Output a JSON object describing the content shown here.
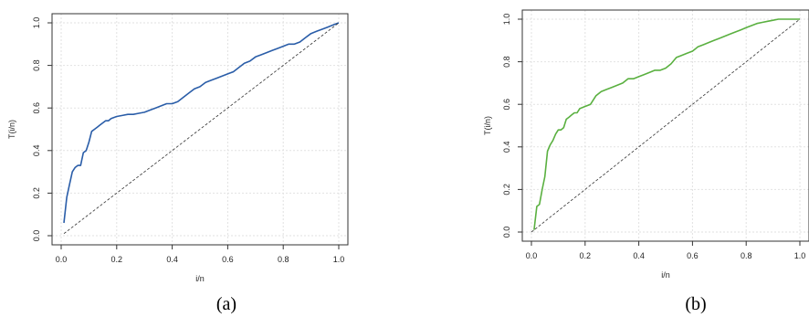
{
  "chart_data": [
    {
      "type": "line",
      "caption": "(a)",
      "xlabel": "i/n",
      "ylabel": "T(i/n)",
      "xlim": [
        0,
        1
      ],
      "ylim": [
        0,
        1
      ],
      "xticks": [
        "0.0",
        "0.2",
        "0.4",
        "0.6",
        "0.8",
        "1.0"
      ],
      "yticks": [
        "0.0",
        "0.2",
        "0.4",
        "0.6",
        "0.8",
        "1.0"
      ],
      "grid": true,
      "series": [
        {
          "color": "#2a5da8",
          "x": [
            0.01,
            0.02,
            0.03,
            0.04,
            0.05,
            0.06,
            0.07,
            0.08,
            0.09,
            0.1,
            0.11,
            0.12,
            0.13,
            0.14,
            0.15,
            0.16,
            0.17,
            0.18,
            0.2,
            0.22,
            0.24,
            0.26,
            0.28,
            0.3,
            0.32,
            0.34,
            0.36,
            0.38,
            0.4,
            0.42,
            0.44,
            0.46,
            0.48,
            0.5,
            0.52,
            0.54,
            0.56,
            0.58,
            0.6,
            0.62,
            0.64,
            0.66,
            0.68,
            0.7,
            0.72,
            0.74,
            0.76,
            0.78,
            0.8,
            0.82,
            0.84,
            0.86,
            0.88,
            0.9,
            0.92,
            0.94,
            0.96,
            0.98,
            1.0
          ],
          "y": [
            0.06,
            0.18,
            0.24,
            0.3,
            0.32,
            0.33,
            0.33,
            0.39,
            0.4,
            0.44,
            0.49,
            0.5,
            0.51,
            0.52,
            0.53,
            0.54,
            0.54,
            0.55,
            0.56,
            0.565,
            0.57,
            0.57,
            0.575,
            0.58,
            0.59,
            0.6,
            0.61,
            0.62,
            0.62,
            0.63,
            0.65,
            0.67,
            0.69,
            0.7,
            0.72,
            0.73,
            0.74,
            0.75,
            0.76,
            0.77,
            0.79,
            0.81,
            0.82,
            0.84,
            0.85,
            0.86,
            0.87,
            0.88,
            0.89,
            0.9,
            0.9,
            0.91,
            0.93,
            0.95,
            0.96,
            0.97,
            0.98,
            0.99,
            1.0
          ]
        },
        {
          "color": "#333333",
          "style": "dashed",
          "x": [
            0.01,
            1.0
          ],
          "y": [
            0.01,
            1.0
          ]
        }
      ]
    },
    {
      "type": "line",
      "caption": "(b)",
      "xlabel": "i/n",
      "ylabel": "T(i/n)",
      "xlim": [
        0,
        1
      ],
      "ylim": [
        0,
        1
      ],
      "xticks": [
        "0.0",
        "0.2",
        "0.4",
        "0.6",
        "0.8",
        "1.0"
      ],
      "yticks": [
        "0.0",
        "0.2",
        "0.4",
        "0.6",
        "0.8",
        "1.0"
      ],
      "grid": true,
      "series": [
        {
          "color": "#5ab040",
          "x": [
            0.01,
            0.02,
            0.03,
            0.04,
            0.05,
            0.06,
            0.07,
            0.08,
            0.09,
            0.1,
            0.11,
            0.12,
            0.13,
            0.14,
            0.15,
            0.16,
            0.17,
            0.18,
            0.2,
            0.22,
            0.24,
            0.26,
            0.28,
            0.3,
            0.32,
            0.34,
            0.36,
            0.38,
            0.4,
            0.42,
            0.44,
            0.46,
            0.48,
            0.5,
            0.52,
            0.54,
            0.56,
            0.58,
            0.6,
            0.62,
            0.64,
            0.66,
            0.68,
            0.7,
            0.72,
            0.74,
            0.76,
            0.78,
            0.8,
            0.82,
            0.84,
            0.86,
            0.88,
            0.9,
            0.92,
            0.94,
            0.96,
            0.98,
            1.0
          ],
          "y": [
            0.01,
            0.12,
            0.13,
            0.2,
            0.26,
            0.38,
            0.41,
            0.43,
            0.46,
            0.48,
            0.48,
            0.49,
            0.53,
            0.54,
            0.55,
            0.56,
            0.56,
            0.58,
            0.59,
            0.6,
            0.64,
            0.66,
            0.67,
            0.68,
            0.69,
            0.7,
            0.72,
            0.72,
            0.73,
            0.74,
            0.75,
            0.76,
            0.76,
            0.77,
            0.79,
            0.82,
            0.83,
            0.84,
            0.85,
            0.87,
            0.88,
            0.89,
            0.9,
            0.91,
            0.92,
            0.93,
            0.94,
            0.95,
            0.96,
            0.97,
            0.98,
            0.985,
            0.99,
            0.995,
            1.0,
            1.0,
            1.0,
            1.0,
            1.0
          ]
        },
        {
          "color": "#333333",
          "style": "dashed",
          "x": [
            0.0,
            1.0
          ],
          "y": [
            0.0,
            1.0
          ]
        }
      ]
    }
  ]
}
